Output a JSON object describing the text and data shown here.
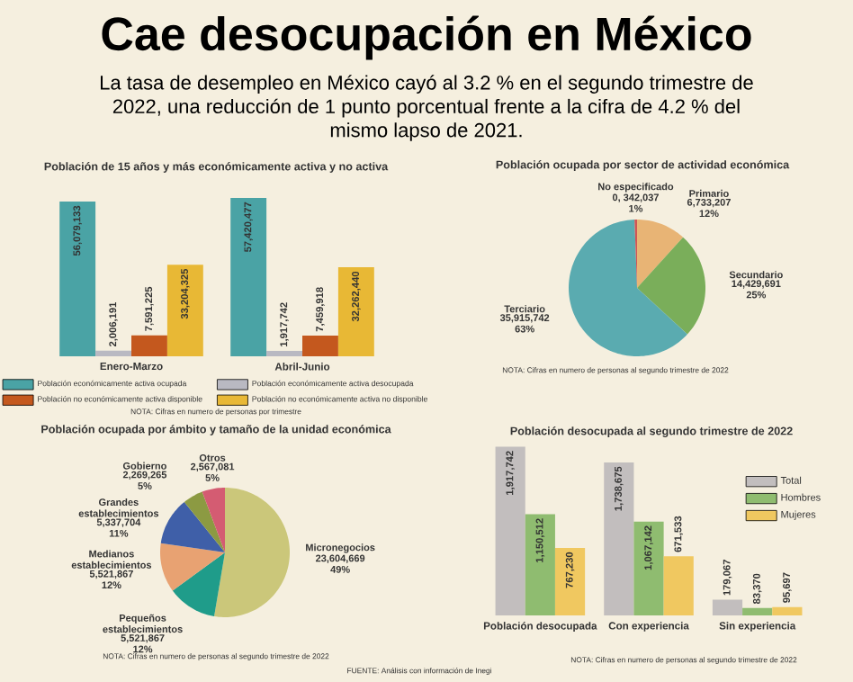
{
  "chart_data": [
    {
      "type": "other",
      "title": "Cae desocupación en México",
      "subtitle": "La tasa de desempleo en México cayó al 3.2 % en el segundo trimestre de 2022, una reducción de 1 punto porcentual frente a la cifra de 4.2 % del mismo lapso de 2021."
    },
    {
      "type": "bar",
      "title": "Población de 15 años y más económicamente activa y no activa",
      "categories": [
        "Enero-Marzo",
        "Abril-Junio"
      ],
      "legend": "bottom",
      "annotations": [
        "NOTA: Cifras en numero de personas por trimestre"
      ],
      "series": [
        {
          "name": "Población económicamente activa ocupada",
          "color": "#4aa3a5",
          "values": [
            56079133,
            57420477
          ],
          "value_labels": [
            "56,079,133",
            "57,420,477"
          ]
        },
        {
          "name": "Población económicamente activa desocupada",
          "color": "#b9b9c2",
          "values": [
            2006191,
            1917742
          ],
          "value_labels": [
            "2,006,191",
            "1,917,742"
          ]
        },
        {
          "name": "Población no económicamente activa disponible",
          "color": "#c4581e",
          "values": [
            7591225,
            7459918
          ],
          "value_labels": [
            "7,591,225",
            "7,459,918"
          ]
        },
        {
          "name": "Población no económicamente activa no disponible",
          "color": "#e8b835",
          "values": [
            33204325,
            32262440
          ],
          "value_labels": [
            "33,204,325",
            "32,262,440"
          ]
        }
      ]
    },
    {
      "type": "pie",
      "title": "Población ocupada por sector de actividad económica",
      "categories": [
        "Primario",
        "Secundario",
        "Terciario",
        "No especificado"
      ],
      "values": [
        6733207,
        14429691,
        35915742,
        342037
      ],
      "value_labels": [
        "6,733,207 12%",
        "14,429,691 25%",
        "35,915,742 63%",
        "0, 342,037 1%"
      ],
      "colors": [
        "#e8b475",
        "#7aae5a",
        "#5aabb0",
        "#d05555"
      ],
      "annotations": [
        "NOTA: Cifras en numero de personas al segundo trimestre de 2022"
      ]
    },
    {
      "type": "pie",
      "title": "Población ocupada por ámbito y tamaño de la unidad económica",
      "categories": [
        "Micronegocios",
        "Pequeños establecimientos",
        "Medianos establecimientos",
        "Grandes establecimientos",
        "Gobierno",
        "Otros"
      ],
      "values": [
        23604669,
        5521867,
        5521867,
        5337704,
        2269265,
        2567081
      ],
      "value_labels": [
        "23,604,669 49%",
        "5,521,867 12%",
        "5,521,867 12%",
        "5,337,704 11%",
        "2,269,265 5%",
        "2,567,081 5%"
      ],
      "colors": [
        "#cbc77a",
        "#1f9c8a",
        "#e8a272",
        "#3f5fa8",
        "#8c9a42",
        "#d45c72"
      ],
      "annotations": [
        "NOTA: Cifras en numero de personas al segundo trimestre de 2022",
        "FUENTE: Análisis con información de Inegi"
      ]
    },
    {
      "type": "bar",
      "title": "Población desocupada al segundo trimestre de 2022",
      "categories": [
        "Población desocupada",
        "Con experiencia",
        "Sin experiencia"
      ],
      "legend": "top right",
      "annotations": [
        "NOTA: Cifras en numero de personas al segundo trimestre de 2022"
      ],
      "series": [
        {
          "name": "Total",
          "color": "#c2bebe",
          "values": [
            1917742,
            1738675,
            179067
          ],
          "value_labels": [
            "1,917,742",
            "1,738,675",
            "179,067"
          ]
        },
        {
          "name": "Hombres",
          "color": "#8fbc70",
          "values": [
            1150512,
            1067142,
            83370
          ],
          "value_labels": [
            "1,150,512",
            "1,067,142",
            "83,370"
          ]
        },
        {
          "name": "Mujeres",
          "color": "#f0c860",
          "values": [
            767230,
            671533,
            95697
          ],
          "value_labels": [
            "767,230",
            "671,533",
            "95,697"
          ]
        }
      ]
    }
  ]
}
